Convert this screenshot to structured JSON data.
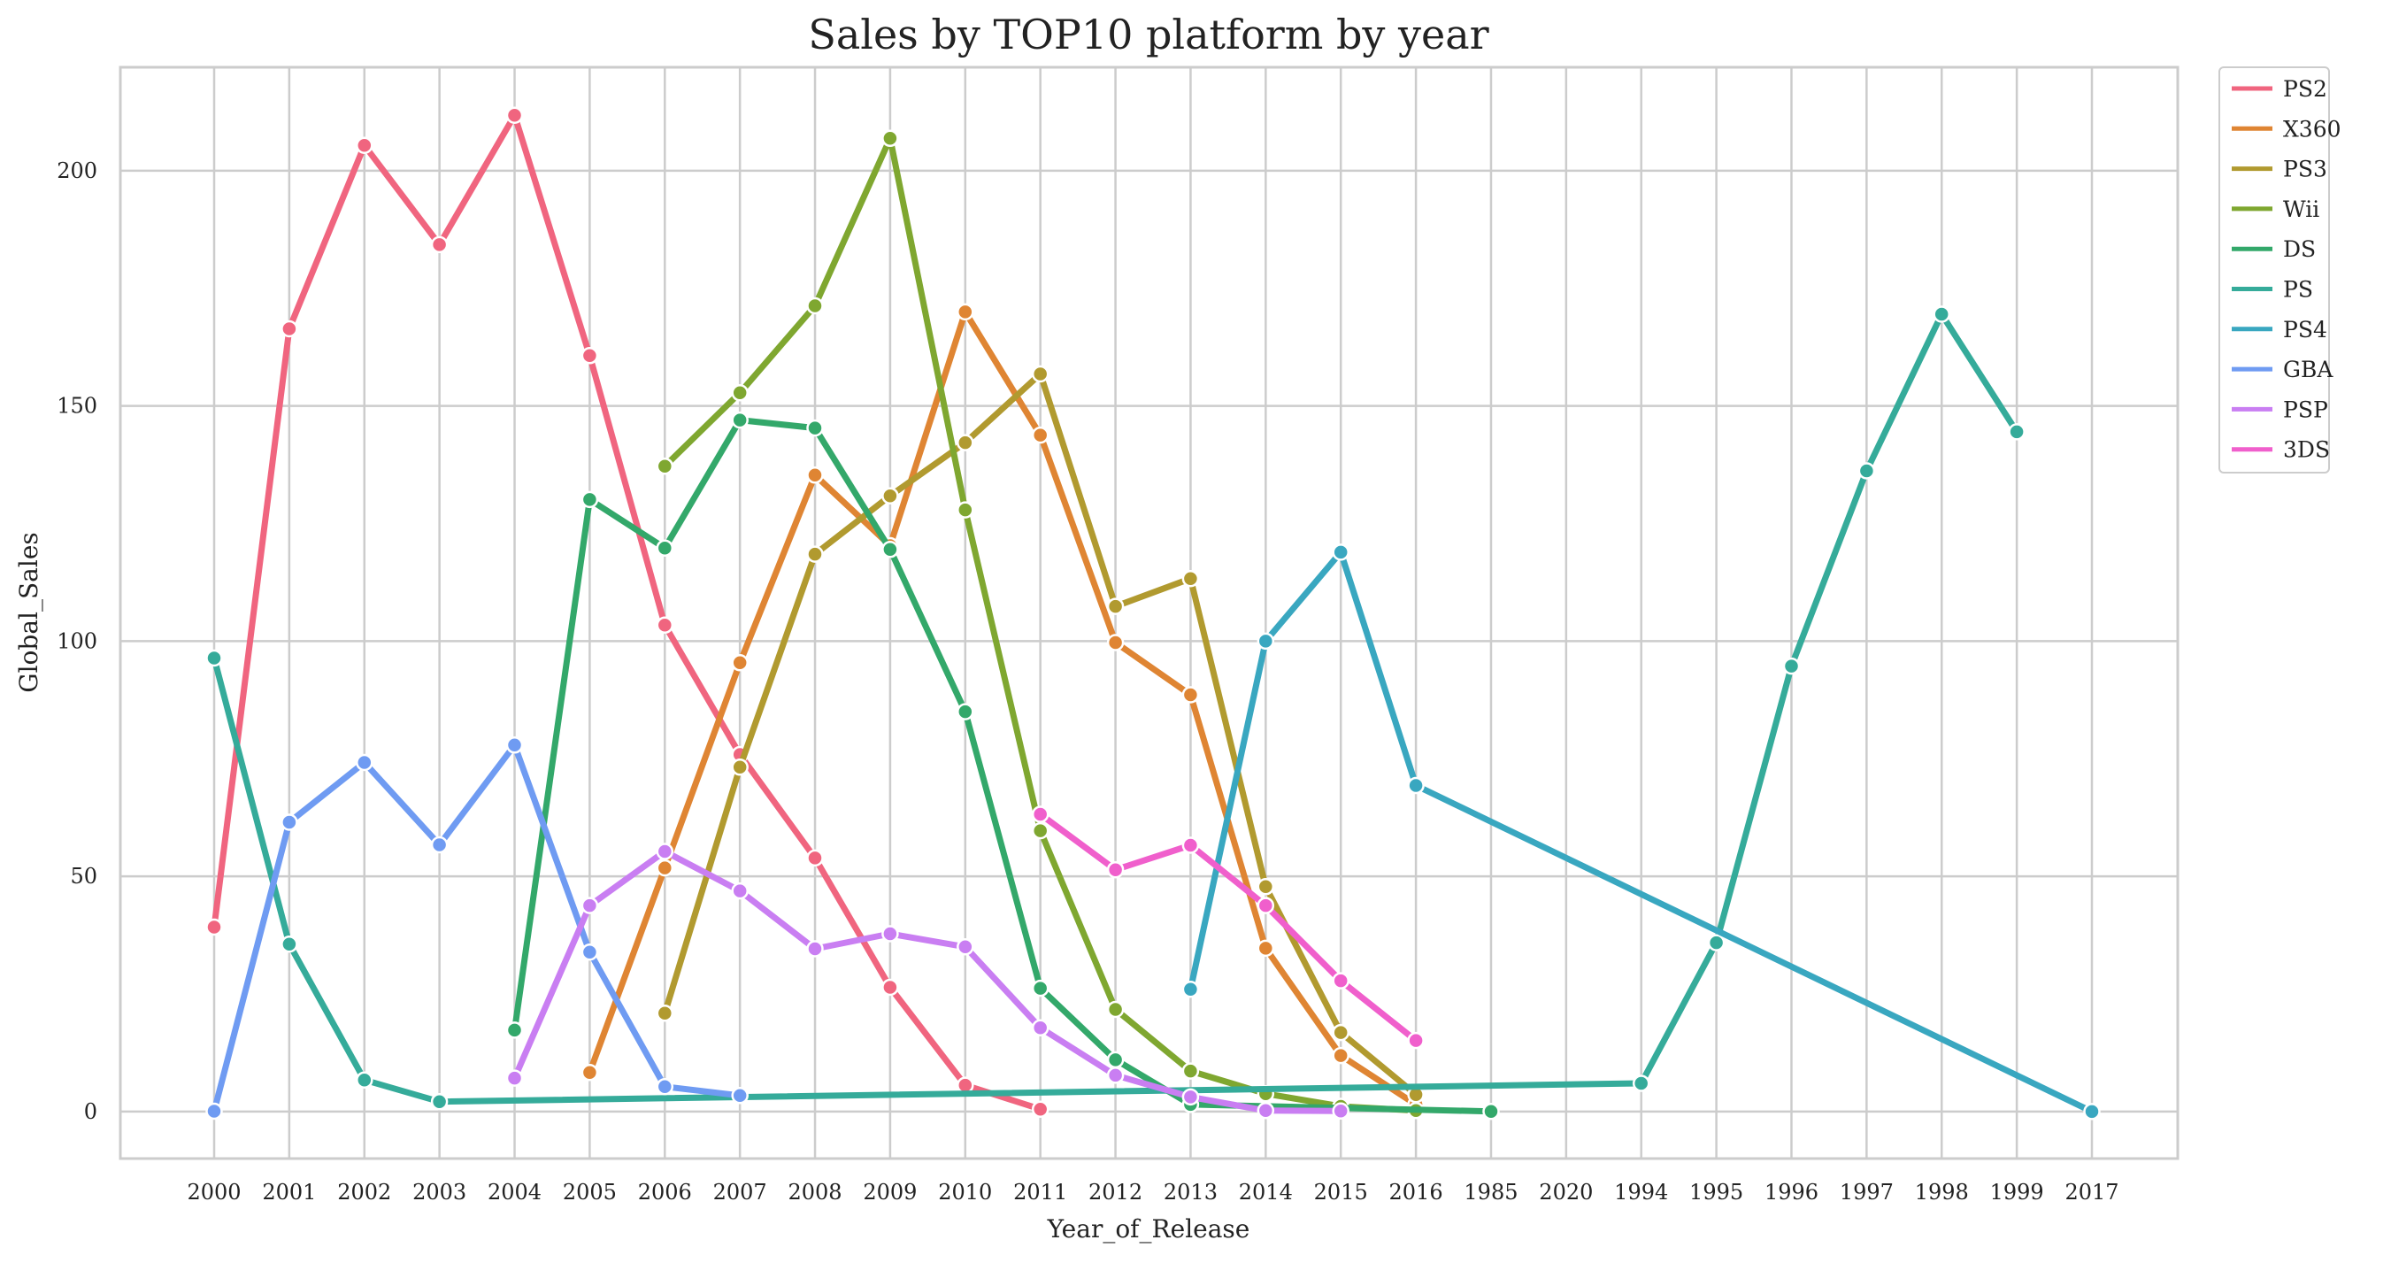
{
  "chart_data": {
    "type": "line",
    "title": "Sales by TOP10 platform by year",
    "xlabel": "Year_of_Release",
    "ylabel": "Global_Sales",
    "categories": [
      "2000",
      "2001",
      "2002",
      "2003",
      "2004",
      "2005",
      "2006",
      "2007",
      "2008",
      "2009",
      "2010",
      "2011",
      "2012",
      "2013",
      "2014",
      "2015",
      "2016",
      "1985",
      "2020",
      "1994",
      "1995",
      "1996",
      "1997",
      "1998",
      "1999",
      "2017"
    ],
    "ylim": [
      -10,
      222
    ],
    "yticks": [
      0,
      50,
      100,
      150,
      200
    ],
    "grid": true,
    "legend_position": "outside-top-right",
    "series": [
      {
        "name": "PS2",
        "color": "#f0657f",
        "points": [
          [
            "2000",
            39.2
          ],
          [
            "2001",
            166.4
          ],
          [
            "2002",
            205.4
          ],
          [
            "2003",
            184.3
          ],
          [
            "2004",
            211.8
          ],
          [
            "2005",
            160.7
          ],
          [
            "2006",
            103.4
          ],
          [
            "2007",
            75.9
          ],
          [
            "2008",
            53.9
          ],
          [
            "2009",
            26.4
          ],
          [
            "2010",
            5.6
          ],
          [
            "2011",
            0.5
          ]
        ]
      },
      {
        "name": "X360",
        "color": "#df8533",
        "points": [
          [
            "2005",
            8.3
          ],
          [
            "2006",
            51.8
          ],
          [
            "2007",
            95.4
          ],
          [
            "2008",
            135.3
          ],
          [
            "2009",
            120.3
          ],
          [
            "2010",
            170.0
          ],
          [
            "2011",
            143.8
          ],
          [
            "2012",
            99.7
          ],
          [
            "2013",
            88.6
          ],
          [
            "2014",
            34.7
          ],
          [
            "2015",
            11.9
          ],
          [
            "2016",
            1.5
          ]
        ]
      },
      {
        "name": "PS3",
        "color": "#b19a2f",
        "points": [
          [
            "2006",
            20.9
          ],
          [
            "2007",
            73.2
          ],
          [
            "2008",
            118.5
          ],
          [
            "2009",
            130.9
          ],
          [
            "2010",
            142.2
          ],
          [
            "2011",
            156.8
          ],
          [
            "2012",
            107.4
          ],
          [
            "2013",
            113.3
          ],
          [
            "2014",
            47.8
          ],
          [
            "2015",
            16.8
          ],
          [
            "2016",
            3.6
          ]
        ]
      },
      {
        "name": "Wii",
        "color": "#7fa730",
        "points": [
          [
            "2006",
            137.2
          ],
          [
            "2007",
            152.8
          ],
          [
            "2008",
            171.3
          ],
          [
            "2009",
            206.9
          ],
          [
            "2010",
            127.9
          ],
          [
            "2011",
            59.7
          ],
          [
            "2012",
            21.7
          ],
          [
            "2013",
            8.6
          ],
          [
            "2014",
            3.8
          ],
          [
            "2015",
            1.1
          ],
          [
            "2016",
            0.2
          ]
        ]
      },
      {
        "name": "DS",
        "color": "#33a86a",
        "points": [
          [
            "2004",
            17.3
          ],
          [
            "2005",
            130.1
          ],
          [
            "2006",
            119.8
          ],
          [
            "2007",
            147.0
          ],
          [
            "2008",
            145.3
          ],
          [
            "2009",
            119.5
          ],
          [
            "2010",
            85.0
          ],
          [
            "2011",
            26.2
          ],
          [
            "2012",
            11.0
          ],
          [
            "2013",
            1.5
          ],
          [
            "1985",
            0.02
          ]
        ]
      },
      {
        "name": "PS",
        "color": "#35ab9a",
        "points": [
          [
            "2000",
            96.4
          ],
          [
            "2001",
            35.6
          ],
          [
            "2002",
            6.7
          ],
          [
            "2003",
            2.1
          ],
          [
            "1994",
            6.0
          ],
          [
            "1995",
            35.9
          ],
          [
            "1996",
            94.7
          ],
          [
            "1997",
            136.2
          ],
          [
            "1998",
            169.5
          ],
          [
            "1999",
            144.5
          ]
        ]
      },
      {
        "name": "PS4",
        "color": "#39a7c0",
        "points": [
          [
            "2013",
            25.99
          ],
          [
            "2014",
            100.0
          ],
          [
            "2015",
            118.9
          ],
          [
            "2016",
            69.3
          ],
          [
            "2017",
            0.0
          ]
        ]
      },
      {
        "name": "GBA",
        "color": "#6f9bf2",
        "points": [
          [
            "2000",
            0.07
          ],
          [
            "2001",
            61.5
          ],
          [
            "2002",
            74.2
          ],
          [
            "2003",
            56.7
          ],
          [
            "2004",
            77.9
          ],
          [
            "2005",
            33.9
          ],
          [
            "2006",
            5.3
          ],
          [
            "2007",
            3.4
          ]
        ]
      },
      {
        "name": "PSP",
        "color": "#c97ef2",
        "points": [
          [
            "2004",
            7.1
          ],
          [
            "2005",
            43.8
          ],
          [
            "2006",
            55.3
          ],
          [
            "2007",
            46.9
          ],
          [
            "2008",
            34.6
          ],
          [
            "2009",
            37.8
          ],
          [
            "2010",
            35.0
          ],
          [
            "2011",
            17.8
          ],
          [
            "2012",
            7.7
          ],
          [
            "2013",
            3.1
          ],
          [
            "2014",
            0.2
          ],
          [
            "2015",
            0.1
          ]
        ]
      },
      {
        "name": "3DS",
        "color": "#f05fcc",
        "points": [
          [
            "2011",
            63.2
          ],
          [
            "2012",
            51.4
          ],
          [
            "2013",
            56.6
          ],
          [
            "2014",
            43.8
          ],
          [
            "2015",
            27.8
          ],
          [
            "2016",
            15.1
          ]
        ]
      }
    ]
  }
}
